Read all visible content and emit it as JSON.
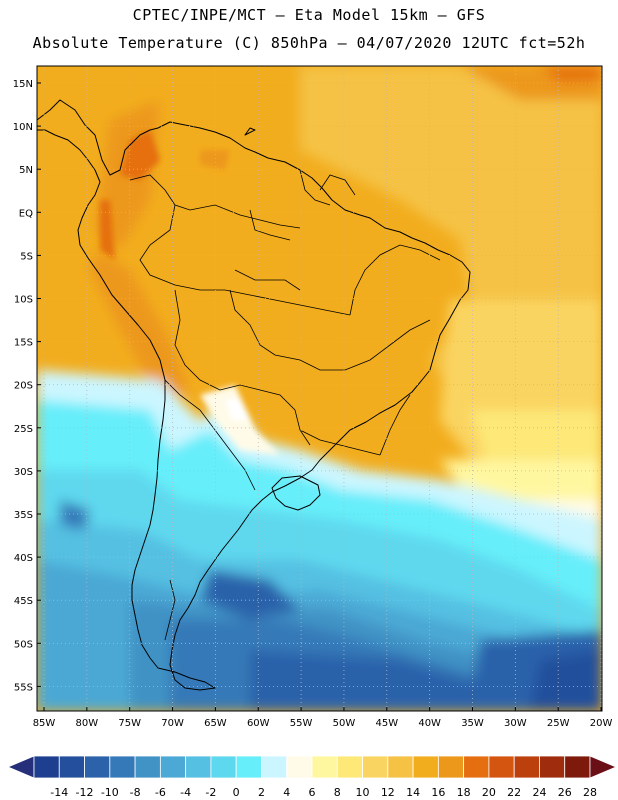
{
  "title": {
    "line1": "CPTEC/INPE/MCT –  Eta Model 15km – GFS",
    "line2": "Absolute Temperature (C) 850hPa – 04/07/2020 12UTC fct=52h"
  },
  "map": {
    "lat_labels": [
      "15N",
      "10N",
      "5N",
      "EQ",
      "5S",
      "10S",
      "15S",
      "20S",
      "25S",
      "30S",
      "35S",
      "40S",
      "45S",
      "50S",
      "55S"
    ],
    "lon_labels": [
      "85W",
      "80W",
      "75W",
      "70W",
      "65W",
      "60W",
      "55W",
      "50W",
      "45W",
      "40W",
      "35W",
      "30W",
      "25W",
      "20W"
    ]
  },
  "colorbar": {
    "colors": [
      "#1e3f8f",
      "#244f9c",
      "#2c62aa",
      "#3679b8",
      "#4192c5",
      "#4ca8d4",
      "#55c0e2",
      "#5ed8ee",
      "#66eefa",
      "#ccf6ff",
      "#fffbe8",
      "#fff7a0",
      "#fde878",
      "#fad460",
      "#f5c245",
      "#f2ad1e",
      "#ec981b",
      "#e56f10",
      "#d45510",
      "#bc3f0e",
      "#9e2c0d",
      "#7d1a0c"
    ],
    "left_arrow_color": "#26307a",
    "right_arrow_color": "#6a0f15",
    "labels": [
      "-14",
      "-12",
      "-10",
      "-8",
      "-6",
      "-4",
      "-2",
      "0",
      "2",
      "4",
      "6",
      "8",
      "10",
      "12",
      "14",
      "16",
      "18",
      "20",
      "22",
      "24",
      "26",
      "28"
    ]
  }
}
